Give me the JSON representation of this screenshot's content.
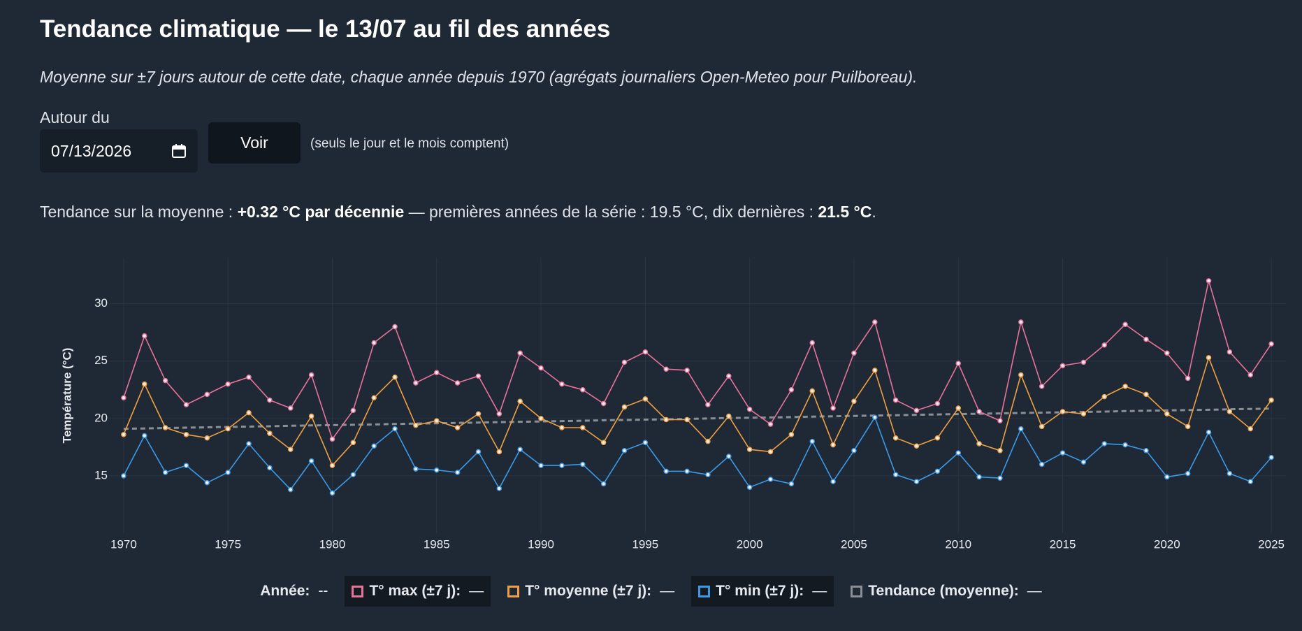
{
  "header": {
    "title": "Tendance climatique — le 13/07 au fil des années",
    "subtitle": "Moyenne sur ±7 jours autour de cette date, chaque année depuis 1970 (agrégats journaliers Open-Meteo pour Puilboreau)."
  },
  "form": {
    "label": "Autour du",
    "date": "07/13/2026",
    "button": "Voir",
    "hint": "(seuls le jour et le mois comptent)"
  },
  "summary": {
    "prefix": "Tendance sur la moyenne :",
    "trend": "+0.32 °C par décennie",
    "middle": "— premières années de la série : 19.5 °C, dix dernières :",
    "recent": "21.5 °C",
    "suffix": "."
  },
  "chart_data": {
    "type": "line",
    "ylabel": "Température (°C)",
    "x": [
      1970,
      1971,
      1972,
      1973,
      1974,
      1975,
      1976,
      1977,
      1978,
      1979,
      1980,
      1981,
      1982,
      1983,
      1984,
      1985,
      1986,
      1987,
      1988,
      1989,
      1990,
      1991,
      1992,
      1993,
      1994,
      1995,
      1996,
      1997,
      1998,
      1999,
      2000,
      2001,
      2002,
      2003,
      2004,
      2005,
      2006,
      2007,
      2008,
      2009,
      2010,
      2011,
      2012,
      2013,
      2014,
      2015,
      2016,
      2017,
      2018,
      2019,
      2020,
      2021,
      2022,
      2023,
      2024,
      2025
    ],
    "series": [
      {
        "name": "T° max (±7 j):",
        "color": "#e8729a",
        "markers": true,
        "values": [
          21.8,
          27.2,
          23.3,
          21.2,
          22.1,
          23.0,
          23.6,
          21.6,
          20.9,
          23.8,
          18.2,
          20.7,
          26.6,
          28.0,
          23.1,
          24.0,
          23.1,
          23.7,
          20.4,
          25.7,
          24.4,
          23.0,
          22.5,
          21.3,
          24.9,
          25.8,
          24.3,
          24.2,
          21.2,
          23.7,
          20.8,
          19.5,
          22.5,
          26.6,
          20.9,
          25.7,
          28.4,
          21.6,
          20.7,
          21.3,
          24.8,
          20.6,
          19.8,
          28.4,
          22.8,
          24.6,
          24.9,
          26.4,
          28.2,
          26.9,
          25.7,
          23.5,
          32.0,
          25.8,
          23.8,
          26.5
        ]
      },
      {
        "name": "T° moyenne (±7 j):",
        "color": "#f0a040",
        "markers": true,
        "values": [
          18.6,
          23.0,
          19.2,
          18.6,
          18.3,
          19.1,
          20.5,
          18.7,
          17.3,
          20.2,
          15.9,
          17.9,
          21.8,
          23.6,
          19.4,
          19.8,
          19.2,
          20.4,
          17.1,
          21.5,
          20.0,
          19.2,
          19.2,
          17.9,
          21.0,
          21.7,
          19.9,
          19.9,
          18.0,
          20.2,
          17.3,
          17.1,
          18.6,
          22.4,
          17.7,
          21.5,
          24.2,
          18.3,
          17.6,
          18.3,
          20.9,
          17.8,
          17.2,
          23.8,
          19.3,
          20.6,
          20.4,
          21.9,
          22.8,
          22.1,
          20.4,
          19.3,
          25.3,
          20.6,
          19.1,
          21.6
        ]
      },
      {
        "name": "T° min (±7 j):",
        "color": "#3a9ae8",
        "markers": true,
        "values": [
          15.0,
          18.5,
          15.3,
          15.9,
          14.4,
          15.3,
          17.8,
          15.7,
          13.8,
          16.3,
          13.5,
          15.1,
          17.6,
          19.1,
          15.6,
          15.5,
          15.3,
          17.1,
          13.9,
          17.3,
          15.9,
          15.9,
          16.0,
          14.3,
          17.2,
          17.9,
          15.4,
          15.4,
          15.1,
          16.7,
          14.0,
          14.7,
          14.3,
          18.0,
          14.5,
          17.2,
          20.1,
          15.1,
          14.5,
          15.4,
          17.0,
          14.9,
          14.8,
          19.1,
          16.0,
          17.0,
          16.2,
          17.8,
          17.7,
          17.2,
          14.9,
          15.2,
          18.8,
          15.2,
          14.5,
          16.6
        ]
      },
      {
        "name": "Tendance (moyenne):",
        "color": "#8a8f96",
        "markers": false,
        "dashed": true,
        "values": [
          19.1,
          19.13,
          19.16,
          19.2,
          19.23,
          19.26,
          19.29,
          19.32,
          19.36,
          19.39,
          19.42,
          19.45,
          19.48,
          19.52,
          19.55,
          19.58,
          19.61,
          19.64,
          19.68,
          19.71,
          19.74,
          19.77,
          19.8,
          19.84,
          19.87,
          19.9,
          19.93,
          19.96,
          20.0,
          20.03,
          20.06,
          20.09,
          20.12,
          20.16,
          20.19,
          20.22,
          20.25,
          20.28,
          20.32,
          20.35,
          20.38,
          20.41,
          20.44,
          20.48,
          20.51,
          20.54,
          20.57,
          20.6,
          20.64,
          20.67,
          20.7,
          20.73,
          20.76,
          20.8,
          20.83,
          20.86
        ]
      }
    ],
    "xlim": [
      1969.3,
      2025.7
    ],
    "xticks": [
      1970,
      1975,
      1980,
      1985,
      1990,
      1995,
      2000,
      2005,
      2010,
      2015,
      2020,
      2025
    ],
    "ylim": [
      10,
      34
    ],
    "yticks": [
      15,
      20,
      25,
      30
    ],
    "grid": true
  },
  "legend": {
    "year_label": "Année:",
    "year_value": "--",
    "readouts": [
      "—",
      "—",
      "—",
      "—"
    ]
  }
}
